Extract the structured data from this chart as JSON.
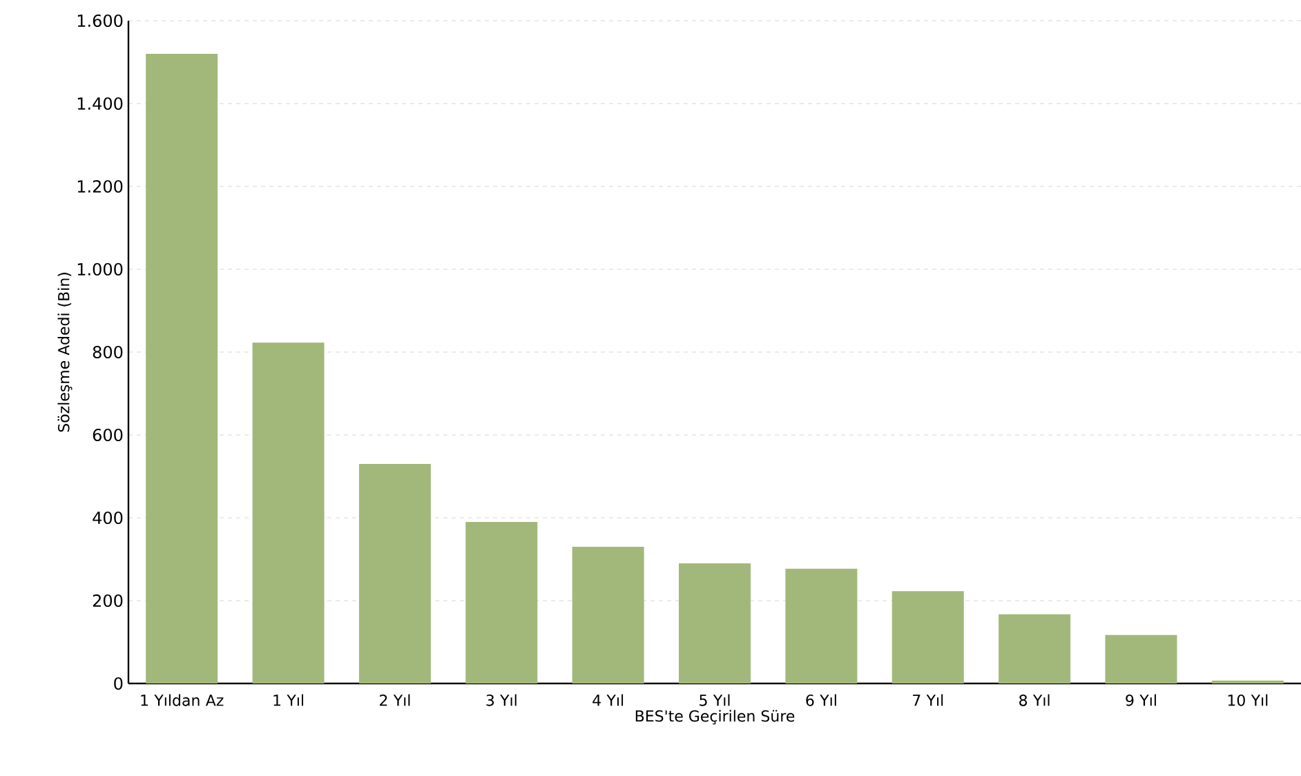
{
  "chart_data": {
    "type": "bar",
    "xlabel": "BES'te Geçirilen Süre",
    "ylabel": "Sözleşme Adedi (Bin)",
    "categories": [
      "1 Yıldan Az",
      "1 Yıl",
      "2 Yıl",
      "3 Yıl",
      "4 Yıl",
      "5 Yıl",
      "6 Yıl",
      "7 Yıl",
      "8 Yıl",
      "9 Yıl",
      "10 Yıl"
    ],
    "values": [
      1520,
      823,
      530,
      390,
      330,
      290,
      277,
      223,
      167,
      117,
      7
    ],
    "color": "#a2b87a",
    "ylim": [
      0,
      1600
    ],
    "yticks": [
      0,
      200,
      400,
      600,
      800,
      {
        "value": 1000,
        "label": "1.000"
      },
      {
        "value": 1200,
        "label": "1.200"
      },
      {
        "value": 1400,
        "label": "1.400"
      },
      {
        "value": 1600,
        "label": "1.600"
      }
    ],
    "grid": "y"
  }
}
